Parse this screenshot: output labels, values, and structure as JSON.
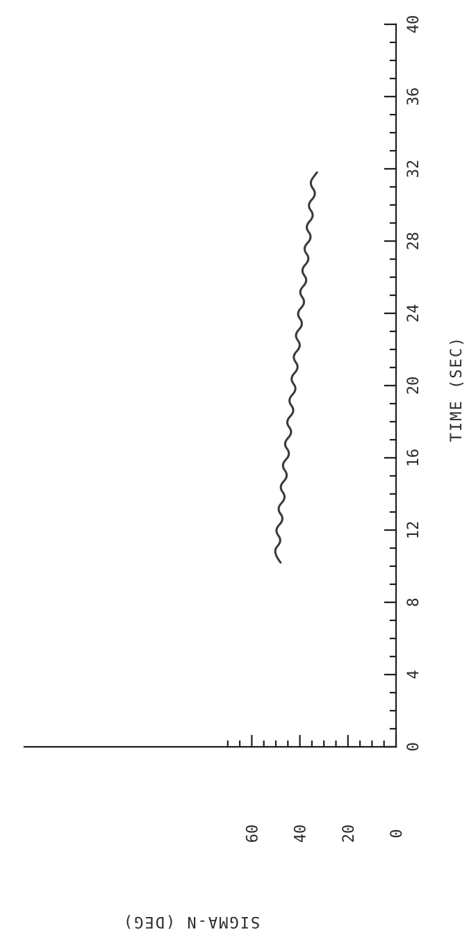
{
  "chart_data": {
    "type": "line",
    "orientation": "rotated-90-clockwise",
    "xlabel": "TIME (SEC)",
    "ylabel": "SIGMA-N (DEG)",
    "xlim": [
      0,
      40
    ],
    "ylim": [
      0,
      70
    ],
    "x_ticks": [
      "0",
      "4",
      "8",
      "12",
      "16",
      "20",
      "24",
      "28",
      "32",
      "36",
      "40"
    ],
    "y_ticks": [
      "0",
      "20",
      "40",
      "60"
    ],
    "grid": false,
    "series": [
      {
        "x": [
          10.2,
          10.8,
          11.4,
          12.0,
          12.6,
          13.2,
          13.8,
          14.4,
          15.0,
          15.6,
          16.2,
          16.8,
          17.4,
          18.0,
          18.6,
          19.2,
          19.8,
          20.4,
          21.0,
          21.6,
          22.2,
          22.8,
          23.4,
          24.0,
          24.6,
          25.2,
          25.8,
          26.4,
          27.0,
          27.6,
          28.2,
          28.8,
          29.4,
          30.0,
          30.6,
          31.2,
          31.8
        ],
        "y": [
          48.0,
          51.6,
          47.2,
          50.7,
          46.3,
          49.8,
          45.4,
          48.9,
          44.5,
          48.0,
          43.6,
          47.1,
          42.7,
          46.2,
          41.8,
          45.3,
          40.9,
          44.4,
          40.0,
          43.5,
          39.1,
          42.6,
          38.2,
          41.7,
          37.3,
          40.8,
          36.4,
          39.9,
          35.5,
          39.0,
          34.6,
          38.1,
          33.7,
          37.2,
          32.8,
          36.3,
          32.9
        ]
      }
    ]
  }
}
